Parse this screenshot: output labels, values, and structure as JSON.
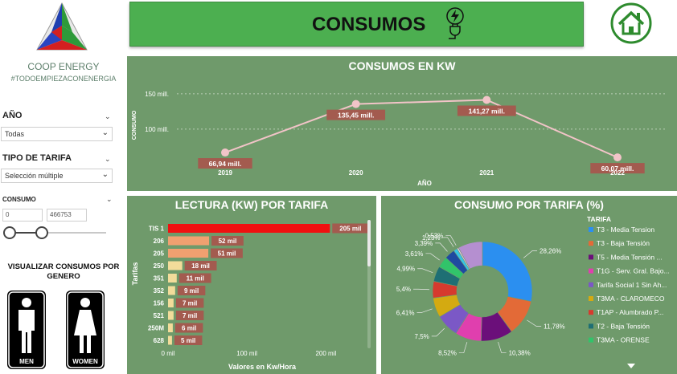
{
  "sidebar": {
    "brand": "COOP ENERGY",
    "tagline": "#TODOEMPIEZACONENERGIA",
    "year_label": "AÑO",
    "year_value": "Todas",
    "tariff_label": "TIPO DE TARIFA",
    "tariff_value": "Selección múltiple",
    "consumo_label": "CONSUMO",
    "consumo_min": "0",
    "consumo_max": "466753",
    "gender_title": "VISUALIZAR CONSUMOS POR GENERO",
    "men_label": "MEN",
    "women_label": "WOMEN"
  },
  "header": {
    "title": "CONSUMOS",
    "icon": "plug-lightning-icon",
    "home_icon": "home-icon"
  },
  "colors": {
    "header_green": "#4caf50",
    "panel_green": "#6f9a6b",
    "line_pink": "#f2c4c8",
    "label_bg": "#a35b4f",
    "bar_top": "#f01010",
    "bar_mid": "#f0a070",
    "bar_low": "#f2dc9a"
  },
  "chart_data": [
    {
      "type": "line",
      "title": "CONSUMOS EN KW",
      "xlabel": "AÑO",
      "ylabel": "CONSUMO",
      "categories": [
        "2019",
        "2020",
        "2021",
        "2022"
      ],
      "values": [
        66.94,
        135.45,
        141.27,
        60.07
      ],
      "data_labels": [
        "66,94 mill.",
        "135,45 mill.",
        "141,27 mill.",
        "60,07 mill."
      ],
      "y_ticks": [
        "100 mill.",
        "150 mill."
      ],
      "ylim": [
        50,
        160
      ],
      "grid": true
    },
    {
      "type": "bar",
      "orientation": "horizontal",
      "title": "LECTURA (KW) POR TARIFA",
      "xlabel": "Valores en Kw/Hora",
      "ylabel": "Tarifas",
      "categories": [
        "TIS 1",
        "206",
        "205",
        "250",
        "351",
        "352",
        "156",
        "521",
        "250M",
        "628"
      ],
      "values": [
        205,
        52,
        51,
        18,
        11,
        9,
        7,
        7,
        6,
        5
      ],
      "data_labels": [
        "205 mil",
        "52 mil",
        "51 mil",
        "18 mil",
        "11 mil",
        "9 mil",
        "7 mil",
        "7 mil",
        "6 mil",
        "5 mil"
      ],
      "x_ticks": [
        "0 mil",
        "100 mil",
        "200 mil"
      ],
      "xlim": [
        0,
        220
      ]
    },
    {
      "type": "pie",
      "title": "CONSUMO POR TARIFA (%)",
      "legend_title": "TARIFA",
      "legend_placement": "right",
      "slices": [
        {
          "label": "T3 -  Media Tension",
          "value": 28.26,
          "text": "28,26%",
          "color": "#2b8ff0"
        },
        {
          "label": "T3 -  Baja  Tensión",
          "value": 11.78,
          "text": "11,78%",
          "color": "#e36a37"
        },
        {
          "label": "T5 -  Media Tensión ...",
          "value": 10.38,
          "text": "10,38%",
          "color": "#6b0f7a"
        },
        {
          "label": "T1G - Serv. Gral. Bajo...",
          "value": 8.52,
          "text": "8,52%",
          "color": "#e03fae"
        },
        {
          "label": "Tarifa Social 1 Sin Ah...",
          "value": 7.5,
          "text": "7,5%",
          "color": "#7b58c6"
        },
        {
          "label": "T3MA - CLAROMECO",
          "value": 6.41,
          "text": "6,41%",
          "color": "#d4aa11"
        },
        {
          "label": "T1AP - Alumbrado P...",
          "value": 5.4,
          "text": "5,4%",
          "color": "#d63a2e"
        },
        {
          "label": "T2 - Baja Tensión",
          "value": 4.99,
          "text": "4,99%",
          "color": "#1e6f74"
        },
        {
          "label": "T3MA - ORENSE",
          "value": 3.61,
          "text": "3,61%",
          "color": "#31c46a"
        },
        {
          "label": "",
          "value": 3.39,
          "text": "3,39%",
          "color": "#1f4aa0"
        },
        {
          "label": "",
          "value": 1.23,
          "text": "1,23%",
          "color": "#37c4e6"
        },
        {
          "label": "",
          "value": 0.53,
          "text": "0,53%",
          "color": "#e8c4e8"
        },
        {
          "label": "",
          "value": 8.0,
          "text": "",
          "color": "#b58fd0"
        }
      ]
    }
  ]
}
